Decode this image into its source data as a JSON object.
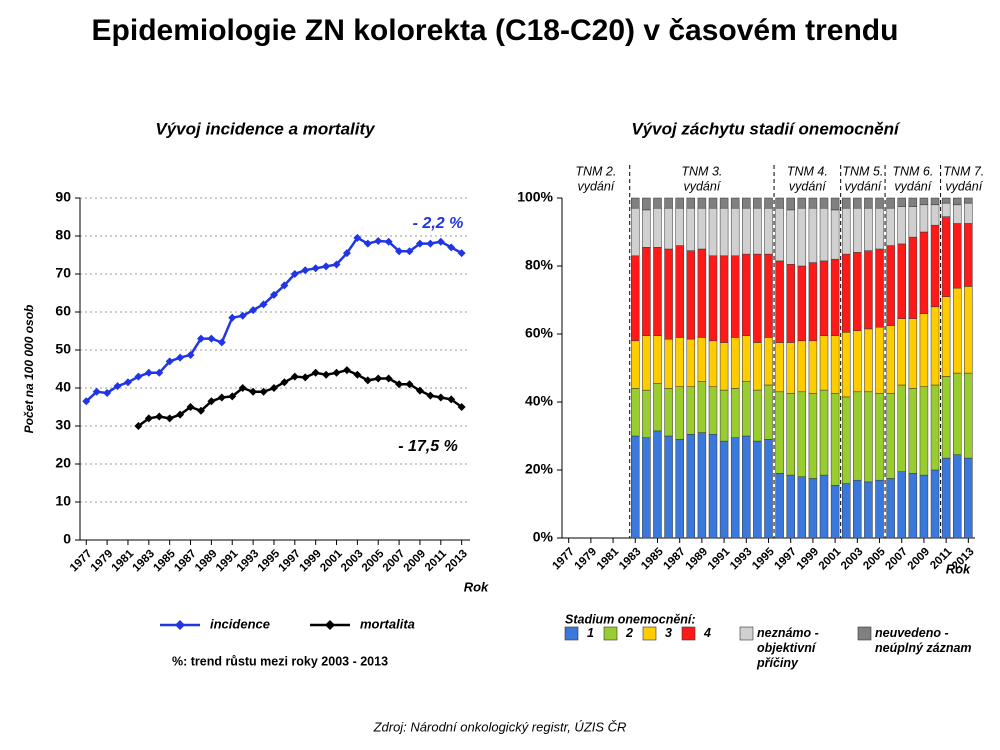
{
  "title": "Epidemiologie ZN kolorekta (C18-C20) v časovém trendu",
  "source": "Zdroj: Národní onkologický registr, ÚZIS ČR",
  "chart_data": [
    {
      "type": "line",
      "title": "Vývoj incidence a mortality",
      "y_label": "Počet na 100 000 osob",
      "x_label": "Rok",
      "x": [
        1977,
        1978,
        1979,
        1980,
        1981,
        1982,
        1983,
        1984,
        1985,
        1986,
        1987,
        1988,
        1989,
        1990,
        1991,
        1992,
        1993,
        1994,
        1995,
        1996,
        1997,
        1998,
        1999,
        2000,
        2001,
        2002,
        2003,
        2004,
        2005,
        2006,
        2007,
        2008,
        2009,
        2010,
        2011,
        2012,
        2013
      ],
      "xlim": [
        1976.4,
        2013.8
      ],
      "xticks": [
        1977,
        1979,
        1981,
        1983,
        1985,
        1987,
        1989,
        1991,
        1993,
        1995,
        1997,
        1999,
        2001,
        2003,
        2005,
        2007,
        2009,
        2011,
        2013
      ],
      "ylim": [
        0,
        90
      ],
      "yticks": [
        0,
        10,
        20,
        30,
        40,
        50,
        60,
        70,
        80,
        90
      ],
      "grid": true,
      "series": [
        {
          "name": "incidence",
          "color": "#1f35e6",
          "values": [
            36.5,
            39,
            38.7,
            40.5,
            41.5,
            43,
            44,
            44,
            47,
            48,
            48.7,
            53,
            53,
            52,
            58.5,
            59,
            60.5,
            62,
            64.5,
            67,
            70,
            71,
            71.5,
            72,
            72.5,
            75.5,
            79.5,
            78,
            78.7,
            78.5,
            76,
            76,
            78,
            78,
            78.5,
            77,
            75.5
          ]
        },
        {
          "name": "mortalita",
          "color": "#000000",
          "values": [
            null,
            null,
            null,
            null,
            null,
            30,
            32,
            32.5,
            32,
            33,
            35,
            34,
            36.5,
            37.5,
            37.8,
            40,
            39,
            39,
            40,
            41.5,
            43,
            42.8,
            44,
            43.5,
            44,
            44.7,
            43.5,
            42,
            42.5,
            42.5,
            41,
            41,
            39.3,
            38,
            37.5,
            37,
            35
          ]
        }
      ],
      "annotations": [
        {
          "text": "- 2,2 %",
          "color": "#1f35e6"
        },
        {
          "text": "- 17,5 %",
          "color": "#000000"
        }
      ],
      "note": "%: trend růstu mezi roky 2003 - 2013"
    },
    {
      "type": "stacked_bar",
      "title": "Vývoj záchytu stadií onemocnění",
      "x_label": "Rok",
      "x": [
        1977,
        1978,
        1979,
        1980,
        1981,
        1982,
        1983,
        1984,
        1985,
        1986,
        1987,
        1988,
        1989,
        1990,
        1991,
        1992,
        1993,
        1994,
        1995,
        1996,
        1997,
        1998,
        1999,
        2000,
        2001,
        2002,
        2003,
        2004,
        2005,
        2006,
        2007,
        2008,
        2009,
        2010,
        2011,
        2012,
        2013
      ],
      "xlim": [
        1976.4,
        2013.6
      ],
      "xticks": [
        1977,
        1979,
        1981,
        1983,
        1985,
        1987,
        1989,
        1991,
        1993,
        1995,
        1997,
        1999,
        2001,
        2003,
        2005,
        2007,
        2009,
        2011,
        2013
      ],
      "ylim": [
        0,
        100
      ],
      "yticks": [
        {
          "value": 0,
          "label": "0%"
        },
        {
          "value": 20,
          "label": "20%"
        },
        {
          "value": 40,
          "label": "40%"
        },
        {
          "value": 60,
          "label": "60%"
        },
        {
          "value": 80,
          "label": "80%"
        },
        {
          "value": 100,
          "label": "100%"
        }
      ],
      "grid": false,
      "legend_title": "Stadium  onemocnění:",
      "series": [
        {
          "name": "1",
          "color": "#3b78dc",
          "values": [
            null,
            null,
            null,
            null,
            null,
            null,
            30,
            29.5,
            31.5,
            30,
            29,
            30.5,
            31,
            30.5,
            28.5,
            29.5,
            30,
            28.5,
            29,
            19,
            18.5,
            18,
            17.5,
            18.5,
            15.5,
            16,
            17,
            16.5,
            17,
            17.5,
            19.5,
            19,
            18.5,
            20,
            23.5,
            24.5,
            23.5
          ]
        },
        {
          "name": "2",
          "color": "#99cc2e",
          "values": [
            null,
            null,
            null,
            null,
            null,
            null,
            14,
            14,
            14,
            14,
            15.5,
            14,
            15,
            14,
            15,
            14.5,
            16,
            15,
            16,
            24,
            24,
            25,
            25,
            25,
            27,
            25.5,
            26,
            26.5,
            25.5,
            25,
            25.5,
            25,
            26,
            25,
            24,
            24,
            25
          ]
        },
        {
          "name": "3",
          "color": "#ffcc00",
          "values": [
            null,
            null,
            null,
            null,
            null,
            null,
            14,
            16,
            14,
            14.5,
            14.5,
            14,
            13,
            13.5,
            14,
            15,
            13.5,
            14,
            14,
            14.5,
            15,
            15,
            15.5,
            16,
            17,
            19,
            18,
            18.5,
            19.5,
            20,
            19.5,
            20.5,
            21.5,
            23,
            23.5,
            25,
            25.5
          ]
        },
        {
          "name": "4",
          "color": "#ff1a1a",
          "values": [
            null,
            null,
            null,
            null,
            null,
            null,
            25,
            26,
            26,
            26.5,
            27,
            26,
            26,
            25,
            25.5,
            24,
            24,
            26,
            24.5,
            24,
            23,
            22,
            23,
            22,
            22.5,
            23,
            23,
            23,
            23,
            23.5,
            22,
            24,
            24,
            24,
            23.5,
            19,
            18.5
          ]
        },
        {
          "name": "neznámo - objektivní příčiny",
          "color": "#d0d0d0",
          "values": [
            null,
            null,
            null,
            null,
            null,
            null,
            14,
            11,
            11.5,
            12,
            11,
            12.5,
            12,
            14,
            14,
            14,
            13.5,
            13.5,
            13.5,
            15.5,
            16,
            17,
            16,
            15.5,
            14.5,
            13.5,
            13,
            12.5,
            12,
            11,
            11,
            9,
            8,
            6,
            4,
            5.5,
            6
          ]
        },
        {
          "name": "neuvedeno - neúplný záznam",
          "color": "#808080",
          "values": [
            null,
            null,
            null,
            null,
            null,
            null,
            3,
            3.5,
            3,
            3,
            3,
            3,
            3,
            3,
            3,
            3,
            3,
            3,
            3,
            3,
            3.5,
            3,
            3,
            3,
            3.5,
            3,
            3,
            3,
            3,
            3,
            2.5,
            2.5,
            2,
            2,
            1.5,
            2,
            1.5
          ]
        }
      ],
      "editions": [
        {
          "label": "TNM 2.",
          "sublabel": "vydání"
        },
        {
          "label": "TNM 3.",
          "sublabel": "vydání",
          "from": 1983
        },
        {
          "label": "TNM 4.",
          "sublabel": "vydání",
          "from": 1996
        },
        {
          "label": "TNM 5.",
          "sublabel": "vydání",
          "from": 2002
        },
        {
          "label": "TNM 6.",
          "sublabel": "vydání",
          "from": 2006
        },
        {
          "label": "TNM 7.",
          "sublabel": "vydání",
          "from": 2011
        }
      ]
    }
  ]
}
